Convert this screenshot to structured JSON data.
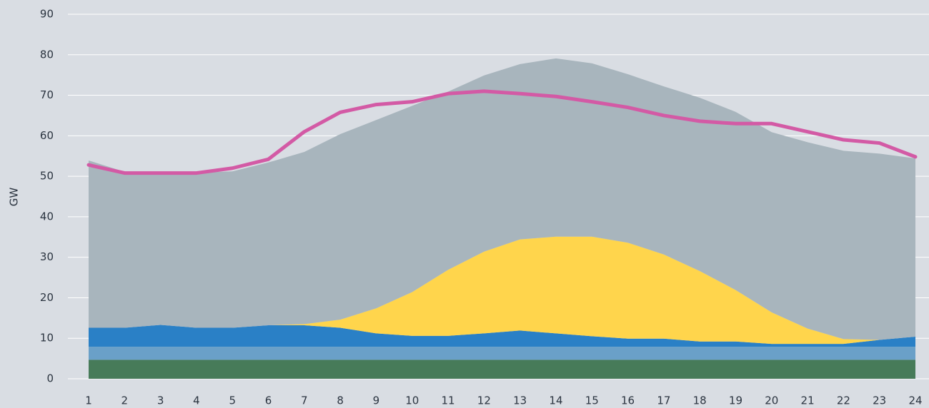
{
  "chart_data": {
    "type": "area",
    "y_label": "GW",
    "categories": [
      "1",
      "2",
      "3",
      "4",
      "5",
      "6",
      "7",
      "8",
      "9",
      "10",
      "11",
      "12",
      "13",
      "14",
      "15",
      "16",
      "17",
      "18",
      "19",
      "20",
      "21",
      "22",
      "23",
      "24"
    ],
    "series": [
      {
        "color": "#477b59",
        "values": [
          4.7,
          4.7,
          4.7,
          4.7,
          4.7,
          4.7,
          4.7,
          4.7,
          4.7,
          4.7,
          4.7,
          4.7,
          4.7,
          4.7,
          4.7,
          4.7,
          4.7,
          4.7,
          4.7,
          4.7,
          4.7,
          4.7,
          4.7,
          4.7
        ]
      },
      {
        "color": "#6aa0c8",
        "values": [
          3.2,
          3.2,
          3.2,
          3.2,
          3.2,
          3.2,
          3.2,
          3.2,
          3.2,
          3.2,
          3.2,
          3.2,
          3.2,
          3.2,
          3.2,
          3.2,
          3.2,
          3.2,
          3.2,
          3.2,
          3.2,
          3.2,
          3.2,
          3.2
        ]
      },
      {
        "color": "#2a80c6",
        "values": [
          4.7,
          4.7,
          5.4,
          4.7,
          4.7,
          5.3,
          5.3,
          4.7,
          3.3,
          2.7,
          2.7,
          3.3,
          4,
          3.3,
          2.6,
          2,
          2,
          1.3,
          1.3,
          0.7,
          0.7,
          0.7,
          1.7,
          2.5
        ]
      },
      {
        "color": "#ffd54c",
        "values": [
          0,
          0,
          0,
          0,
          0,
          0,
          0.3,
          2,
          6.2,
          10.8,
          16.3,
          20.2,
          22.5,
          23.9,
          24.6,
          23.7,
          20.8,
          17.4,
          12.7,
          7.8,
          3.8,
          1.2,
          0,
          0
        ]
      },
      {
        "color": "#a8b5bd",
        "values": [
          41.3,
          38.5,
          37.6,
          38.3,
          38.6,
          40.2,
          42.5,
          45.8,
          46.5,
          46,
          44,
          43.5,
          43.3,
          44,
          42.8,
          41.6,
          41.5,
          42.8,
          44,
          44.5,
          46,
          46.5,
          46,
          44
        ]
      }
    ],
    "line": {
      "color": "#d35aa5",
      "values": [
        52.8,
        50.8,
        50.8,
        50.8,
        52,
        54.2,
        61,
        65.8,
        67.7,
        68.4,
        70.4,
        71,
        70.4,
        69.7,
        68.4,
        67,
        65,
        63.6,
        63,
        63,
        61,
        59,
        58.2,
        54.8
      ]
    },
    "ylim": [
      0,
      90
    ],
    "yticks": [
      0,
      10,
      20,
      30,
      40,
      50,
      60,
      70,
      80,
      90
    ],
    "grid": true
  }
}
